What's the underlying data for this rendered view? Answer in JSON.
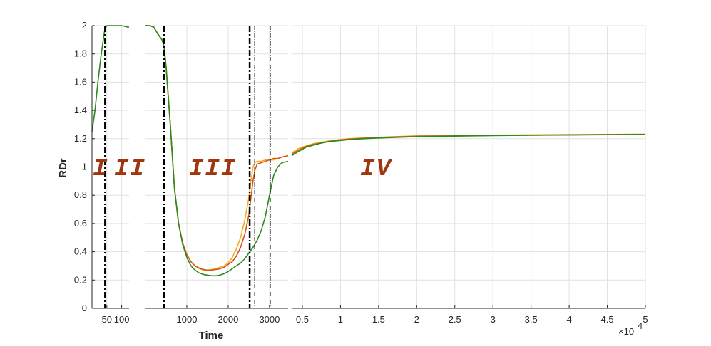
{
  "chart_data": {
    "type": "line",
    "title": "",
    "xlabel": "Time",
    "ylabel": "RDr",
    "ylim": [
      0,
      2
    ],
    "yticks": [
      0,
      0.2,
      0.4,
      0.6,
      0.8,
      1,
      1.2,
      1.4,
      1.6,
      1.8,
      2
    ],
    "ytick_labels": [
      "0",
      "0.2",
      "0.4",
      "0.6",
      "0.8",
      "1",
      "1.2",
      "1.4",
      "1.6",
      "1.8",
      "2"
    ],
    "grid": true,
    "x_exponent_label": "×10",
    "x_exponent_power": "4",
    "phase_labels": [
      "I",
      "II",
      "III",
      "IV"
    ],
    "series_colors": {
      "orange": "#edb120",
      "red": "#d95319",
      "green": "#2b8a1e"
    },
    "panels": [
      {
        "name": "panel1",
        "xlim": [
          0,
          125
        ],
        "xticks": [
          50,
          100
        ],
        "xtick_labels": [
          "50",
          "100"
        ],
        "vlines": [
          {
            "x": 44,
            "style": "dashdot-thick"
          }
        ],
        "series": [
          {
            "name": "green",
            "x": [
              0,
              10,
              20,
              30,
              40,
              44,
              50,
              60,
              70,
              80,
              90,
              100,
              110,
              120,
              125
            ],
            "y": [
              1.25,
              1.4,
              1.6,
              1.78,
              1.93,
              1.98,
              2.0,
              2.0,
              2.0,
              2.0,
              2.0,
              2.0,
              1.995,
              1.99,
              1.99
            ]
          }
        ]
      },
      {
        "name": "panel2",
        "xlim": [
          0,
          3450
        ],
        "xticks": [
          1000,
          2000,
          3000
        ],
        "xtick_labels": [
          "1000",
          "2000",
          "3000"
        ],
        "vlines": [
          {
            "x": 450,
            "style": "dashdot-thick"
          },
          {
            "x": 2520,
            "style": "dashdot-thick"
          },
          {
            "x": 2640,
            "style": "dashdot-thin"
          },
          {
            "x": 3020,
            "style": "dashdot-thin"
          }
        ],
        "series": [
          {
            "name": "orange",
            "x": [
              0,
              100,
              200,
              300,
              400,
              450,
              500,
              600,
              700,
              800,
              900,
              1000,
              1100,
              1200,
              1300,
              1400,
              1500,
              1600,
              1700,
              1800,
              1900,
              2000,
              2100,
              2200,
              2300,
              2400,
              2500,
              2550,
              2600,
              2650,
              2700,
              2800,
              2900,
              3000,
              3100,
              3200,
              3300,
              3450
            ],
            "y": [
              2.0,
              2.0,
              1.99,
              1.94,
              1.9,
              1.85,
              1.7,
              1.3,
              0.85,
              0.6,
              0.46,
              0.38,
              0.33,
              0.3,
              0.28,
              0.27,
              0.27,
              0.275,
              0.28,
              0.29,
              0.3,
              0.32,
              0.36,
              0.42,
              0.5,
              0.62,
              0.78,
              0.9,
              1.0,
              1.03,
              1.04,
              1.04,
              1.05,
              1.05,
              1.05,
              1.06,
              1.07,
              1.08
            ]
          },
          {
            "name": "red",
            "x": [
              0,
              100,
              200,
              300,
              400,
              450,
              500,
              600,
              700,
              800,
              900,
              1000,
              1100,
              1200,
              1300,
              1400,
              1500,
              1600,
              1700,
              1800,
              1900,
              2000,
              2100,
              2200,
              2300,
              2400,
              2500,
              2550,
              2600,
              2650,
              2700,
              2800,
              2900,
              3000,
              3100,
              3200,
              3300,
              3450
            ],
            "y": [
              2.0,
              2.0,
              1.99,
              1.94,
              1.9,
              1.85,
              1.7,
              1.3,
              0.85,
              0.6,
              0.46,
              0.38,
              0.33,
              0.3,
              0.285,
              0.275,
              0.27,
              0.27,
              0.275,
              0.28,
              0.29,
              0.31,
              0.33,
              0.37,
              0.43,
              0.52,
              0.66,
              0.78,
              0.9,
              0.98,
              1.02,
              1.03,
              1.04,
              1.05,
              1.06,
              1.06,
              1.07,
              1.08
            ]
          },
          {
            "name": "green",
            "x": [
              0,
              100,
              200,
              300,
              400,
              450,
              500,
              600,
              700,
              800,
              900,
              1000,
              1100,
              1200,
              1300,
              1400,
              1500,
              1600,
              1700,
              1800,
              1900,
              2000,
              2100,
              2200,
              2300,
              2400,
              2500,
              2600,
              2700,
              2800,
              2900,
              3000,
              3100,
              3200,
              3300,
              3450
            ],
            "y": [
              2.0,
              2.0,
              1.99,
              1.94,
              1.9,
              1.85,
              1.7,
              1.3,
              0.85,
              0.6,
              0.45,
              0.36,
              0.3,
              0.27,
              0.25,
              0.24,
              0.235,
              0.23,
              0.23,
              0.235,
              0.245,
              0.26,
              0.28,
              0.3,
              0.32,
              0.35,
              0.39,
              0.43,
              0.48,
              0.55,
              0.65,
              0.8,
              0.94,
              1.0,
              1.03,
              1.04
            ]
          }
        ]
      },
      {
        "name": "panel3",
        "xlim": [
          3600,
          50000
        ],
        "xticks": [
          5000,
          10000,
          15000,
          20000,
          25000,
          30000,
          35000,
          40000,
          45000,
          50000
        ],
        "xtick_labels": [
          "0.5",
          "1",
          "1.5",
          "2",
          "2.5",
          "3",
          "3.5",
          "4",
          "4.5",
          "5"
        ],
        "vlines": [],
        "series": [
          {
            "name": "orange",
            "x": [
              3600,
              4500,
              5500,
              6500,
              7500,
              8500,
              9500,
              11000,
              13000,
              15000,
              17500,
              20000,
              25000,
              30000,
              35000,
              40000,
              45000,
              50000
            ],
            "y": [
              1.1,
              1.13,
              1.15,
              1.165,
              1.175,
              1.185,
              1.19,
              1.2,
              1.205,
              1.21,
              1.215,
              1.22,
              1.222,
              1.225,
              1.227,
              1.228,
              1.23,
              1.232
            ]
          },
          {
            "name": "red",
            "x": [
              3600,
              4500,
              5500,
              6500,
              7500,
              8500,
              9500,
              11000,
              13000,
              15000,
              17500,
              20000,
              25000,
              30000,
              35000,
              40000,
              45000,
              50000
            ],
            "y": [
              1.09,
              1.12,
              1.145,
              1.16,
              1.17,
              1.18,
              1.19,
              1.197,
              1.203,
              1.208,
              1.213,
              1.217,
              1.22,
              1.223,
              1.225,
              1.227,
              1.229,
              1.23
            ]
          },
          {
            "name": "green",
            "x": [
              3600,
              4500,
              5500,
              6500,
              7500,
              8500,
              9500,
              11000,
              13000,
              15000,
              17500,
              20000,
              25000,
              30000,
              35000,
              40000,
              45000,
              50000
            ],
            "y": [
              1.08,
              1.11,
              1.14,
              1.155,
              1.17,
              1.18,
              1.185,
              1.193,
              1.2,
              1.205,
              1.21,
              1.215,
              1.218,
              1.222,
              1.224,
              1.226,
              1.228,
              1.23
            ]
          }
        ]
      }
    ]
  }
}
